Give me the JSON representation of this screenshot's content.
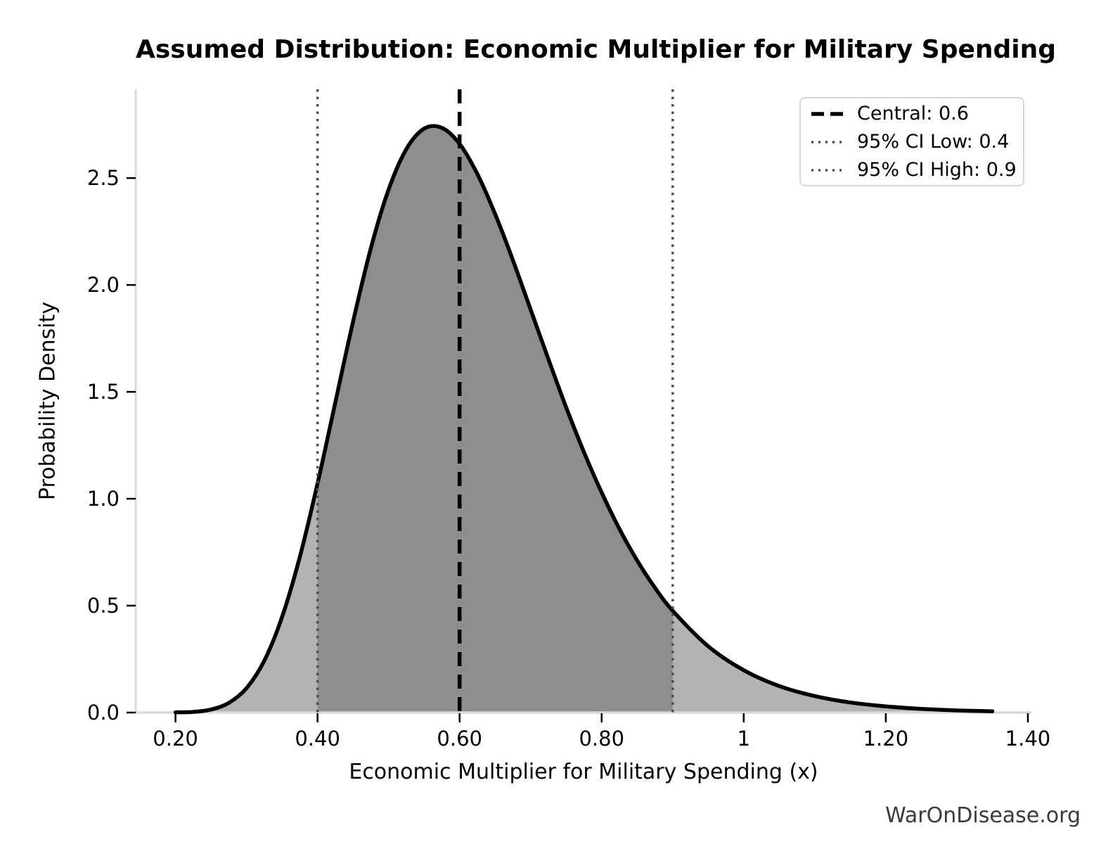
{
  "page": {
    "watermark": "WarOnDisease.org"
  },
  "chart_data": {
    "type": "area",
    "title": "Assumed Distribution: Economic Multiplier for Military Spending",
    "xlabel": "Economic Multiplier for Military Spending (x)",
    "ylabel": "Probability Density",
    "xlim": [
      0.144,
      1.405
    ],
    "ylim": [
      0,
      2.915
    ],
    "grid": false,
    "x_ticks": [
      {
        "value": 0.2,
        "label": "0.20"
      },
      {
        "value": 0.4,
        "label": "0.40"
      },
      {
        "value": 0.6,
        "label": "0.60"
      },
      {
        "value": 0.8,
        "label": "0.80"
      },
      {
        "value": 1.0,
        "label": "1"
      },
      {
        "value": 1.2,
        "label": "1.20"
      },
      {
        "value": 1.4,
        "label": "1.40"
      }
    ],
    "y_ticks": [
      {
        "value": 0.0,
        "label": "0.0"
      },
      {
        "value": 0.5,
        "label": "0.5"
      },
      {
        "value": 1.0,
        "label": "1.0"
      },
      {
        "value": 1.5,
        "label": "1.5"
      },
      {
        "value": 2.0,
        "label": "2.0"
      },
      {
        "value": 2.5,
        "label": "2.5"
      }
    ],
    "curve": {
      "description": "Probability density curve (lognormal-shaped, median 0.6, 95% CI 0.4-0.9, mode ~0.57 peak ~2.75)",
      "x": [
        0.2,
        0.225,
        0.25,
        0.275,
        0.3,
        0.325,
        0.35,
        0.375,
        0.4,
        0.425,
        0.45,
        0.475,
        0.5,
        0.525,
        0.55,
        0.575,
        0.6,
        0.625,
        0.65,
        0.675,
        0.7,
        0.725,
        0.75,
        0.775,
        0.8,
        0.825,
        0.85,
        0.875,
        0.9,
        0.95,
        1.0,
        1.05,
        1.1,
        1.15,
        1.2,
        1.25,
        1.3,
        1.35
      ],
      "y": [
        0.001,
        0.003,
        0.014,
        0.045,
        0.114,
        0.242,
        0.446,
        0.727,
        1.071,
        1.45,
        1.829,
        2.171,
        2.446,
        2.635,
        2.731,
        2.735,
        2.66,
        2.519,
        2.332,
        2.116,
        1.885,
        1.653,
        1.428,
        1.219,
        1.029,
        0.859,
        0.711,
        0.584,
        0.476,
        0.31,
        0.198,
        0.124,
        0.077,
        0.047,
        0.029,
        0.017,
        0.01,
        0.006
      ]
    },
    "ci_fill_range": [
      0.4,
      0.9
    ],
    "vlines": [
      {
        "value": 0.6,
        "style": "dashed",
        "color": "#000000",
        "label": "Central: 0.6"
      },
      {
        "value": 0.4,
        "style": "dotted",
        "color": "#4f4f4f",
        "label": "95% CI Low: 0.4"
      },
      {
        "value": 0.9,
        "style": "dotted",
        "color": "#4f4f4f",
        "label": "95% CI High: 0.9"
      }
    ],
    "legend": {
      "position": "upper right",
      "entries": [
        {
          "label": "Central: 0.6",
          "style": "dashed",
          "color": "#000000"
        },
        {
          "label": "95% CI Low: 0.4",
          "style": "dotted",
          "color": "#4f4f4f"
        },
        {
          "label": "95% CI High: 0.9",
          "style": "dotted",
          "color": "#4f4f4f"
        }
      ]
    },
    "colors": {
      "curve": "#000000",
      "fill_light": "#b3b3b3",
      "fill_dark": "#8e8e8e",
      "spine": "#d9d9d9",
      "tick": "#000000",
      "tick_label": "#000000",
      "watermark": "#3a3a3a"
    }
  }
}
